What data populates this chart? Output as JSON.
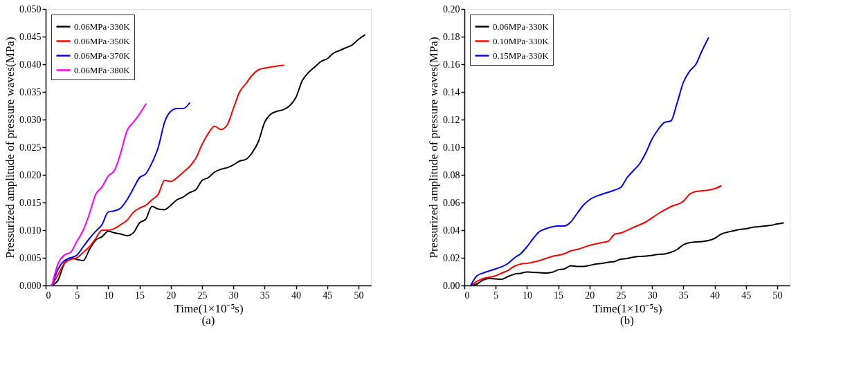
{
  "chart_data": [
    {
      "type": "line",
      "xlabel": "Time(1×10⁻⁵s)",
      "ylabel": "Pressurized amplitude of pressure waves(MPa)",
      "annotations": [
        "(a)"
      ],
      "xlim": [
        0,
        52
      ],
      "ylim": [
        0,
        0.05
      ],
      "xticks": [
        0,
        5,
        10,
        15,
        20,
        25,
        30,
        35,
        40,
        45,
        50
      ],
      "yticks": [
        {
          "value": 0,
          "label": "0.000"
        },
        {
          "value": 0.005,
          "label": "0.005"
        },
        {
          "value": 0.01,
          "label": "0.010"
        },
        {
          "value": 0.015,
          "label": "0.015"
        },
        {
          "value": 0.02,
          "label": "0.020"
        },
        {
          "value": 0.025,
          "label": "0.025"
        },
        {
          "value": 0.03,
          "label": "0.030"
        },
        {
          "value": 0.035,
          "label": "0.035"
        },
        {
          "value": 0.04,
          "label": "0.040"
        },
        {
          "value": 0.045,
          "label": "0.045"
        },
        {
          "value": 0.05,
          "label": "0.050"
        }
      ],
      "grid": false,
      "legend": "top left",
      "line_style": "solid",
      "marker": "none",
      "series": [
        {
          "name": "0.06MPa·330K",
          "color": "#000000",
          "x": [
            1,
            2,
            3,
            4,
            5,
            6,
            7,
            8,
            9,
            10,
            11,
            12,
            13,
            14,
            15,
            16,
            17,
            18,
            19,
            20,
            21,
            22,
            23,
            24,
            25,
            26,
            27,
            28,
            29,
            30,
            31,
            32,
            33,
            34,
            35,
            36,
            37,
            38,
            39,
            40,
            41,
            42,
            43,
            44,
            45,
            46,
            47,
            48,
            49,
            50,
            51
          ],
          "values": [
            0,
            0.001,
            0.004,
            0.005,
            0.0047,
            0.0045,
            0.0065,
            0.0082,
            0.0088,
            0.0098,
            0.0095,
            0.0093,
            0.009,
            0.0095,
            0.0113,
            0.012,
            0.0143,
            0.0138,
            0.0137,
            0.0145,
            0.0155,
            0.016,
            0.0168,
            0.0173,
            0.019,
            0.0195,
            0.0205,
            0.021,
            0.0213,
            0.0218,
            0.0225,
            0.0228,
            0.024,
            0.026,
            0.0295,
            0.031,
            0.0315,
            0.0318,
            0.0325,
            0.034,
            0.037,
            0.0385,
            0.0395,
            0.0405,
            0.041,
            0.042,
            0.0425,
            0.043,
            0.0435,
            0.0445,
            0.0453
          ]
        },
        {
          "name": "0.06MPa·350K",
          "color": "#ff0000",
          "x": [
            1,
            2,
            3,
            4,
            5,
            6,
            7,
            8,
            9,
            10,
            11,
            12,
            13,
            14,
            15,
            16,
            17,
            18,
            19,
            20,
            21,
            22,
            23,
            24,
            25,
            26,
            27,
            28,
            29,
            30,
            31,
            32,
            33,
            34,
            35,
            36,
            37,
            38
          ],
          "values": [
            0,
            0.002,
            0.004,
            0.0047,
            0.005,
            0.006,
            0.007,
            0.0085,
            0.01,
            0.01,
            0.0103,
            0.011,
            0.0118,
            0.0132,
            0.014,
            0.0145,
            0.0155,
            0.0165,
            0.019,
            0.0188,
            0.0195,
            0.0205,
            0.0215,
            0.023,
            0.0255,
            0.0275,
            0.0288,
            0.0282,
            0.029,
            0.032,
            0.035,
            0.0365,
            0.038,
            0.039,
            0.0393,
            0.0395,
            0.0397,
            0.0398
          ]
        },
        {
          "name": "0.06MPa·370K",
          "color": "#0000ff",
          "x": [
            1,
            2,
            3,
            4,
            5,
            6,
            7,
            8,
            9,
            10,
            11,
            12,
            13,
            14,
            15,
            16,
            17,
            18,
            19,
            20,
            21,
            22,
            23
          ],
          "values": [
            0,
            0.003,
            0.0045,
            0.005,
            0.0055,
            0.007,
            0.0085,
            0.0098,
            0.011,
            0.0133,
            0.0135,
            0.014,
            0.0155,
            0.0175,
            0.0195,
            0.0202,
            0.0222,
            0.025,
            0.0295,
            0.0315,
            0.032,
            0.032,
            0.033
          ]
        },
        {
          "name": "0.06MPa·380K",
          "color": "#ff00ff",
          "x": [
            1,
            2,
            3,
            4,
            5,
            6,
            7,
            8,
            9,
            10,
            11,
            12,
            13,
            14,
            15,
            16
          ],
          "values": [
            0,
            0.004,
            0.0055,
            0.006,
            0.008,
            0.01,
            0.013,
            0.0165,
            0.0178,
            0.0198,
            0.0208,
            0.024,
            0.028,
            0.0295,
            0.031,
            0.0328
          ]
        }
      ]
    },
    {
      "type": "line",
      "xlabel": "Time(1×10⁻⁵s)",
      "ylabel": "Pressurized amplitude of pressure waves(MPa)",
      "annotations": [
        "(b)"
      ],
      "xlim": [
        0,
        52
      ],
      "ylim": [
        0,
        0.2
      ],
      "xticks": [
        0,
        5,
        10,
        15,
        20,
        25,
        30,
        35,
        40,
        45,
        50
      ],
      "yticks": [
        {
          "value": 0,
          "label": "0.00"
        },
        {
          "value": 0.02,
          "label": "0.02"
        },
        {
          "value": 0.04,
          "label": "0.04"
        },
        {
          "value": 0.06,
          "label": "0.06"
        },
        {
          "value": 0.08,
          "label": "0.08"
        },
        {
          "value": 0.1,
          "label": "0.10"
        },
        {
          "value": 0.12,
          "label": "0.12"
        },
        {
          "value": 0.14,
          "label": "0.14"
        },
        {
          "value": 0.16,
          "label": "0.16"
        },
        {
          "value": 0.18,
          "label": "0.18"
        },
        {
          "value": 0.2,
          "label": "0.20"
        }
      ],
      "grid": false,
      "legend": "top left",
      "line_style": "solid",
      "marker": "none",
      "series": [
        {
          "name": "0.06MPa·330K",
          "color": "#000000",
          "x": [
            1,
            2,
            3,
            4,
            5,
            6,
            7,
            8,
            9,
            10,
            11,
            12,
            13,
            14,
            15,
            16,
            17,
            18,
            19,
            20,
            21,
            22,
            23,
            24,
            25,
            26,
            27,
            28,
            29,
            30,
            31,
            32,
            33,
            34,
            35,
            36,
            37,
            38,
            39,
            40,
            41,
            42,
            43,
            44,
            45,
            46,
            47,
            48,
            49,
            50,
            51
          ],
          "values": [
            0,
            0.001,
            0.004,
            0.005,
            0.0047,
            0.0045,
            0.0065,
            0.0082,
            0.0088,
            0.0098,
            0.0095,
            0.0093,
            0.009,
            0.0095,
            0.0113,
            0.012,
            0.0143,
            0.0138,
            0.0137,
            0.0145,
            0.0155,
            0.016,
            0.0168,
            0.0173,
            0.019,
            0.0195,
            0.0205,
            0.021,
            0.0213,
            0.0218,
            0.0225,
            0.0228,
            0.024,
            0.026,
            0.0295,
            0.031,
            0.0315,
            0.0318,
            0.0325,
            0.034,
            0.037,
            0.0385,
            0.0395,
            0.0405,
            0.041,
            0.042,
            0.0425,
            0.043,
            0.0435,
            0.0445,
            0.0453
          ]
        },
        {
          "name": "0.10MPa·330K",
          "color": "#ff0000",
          "x": [
            1,
            2,
            3,
            5,
            6,
            7,
            8,
            9,
            10,
            12,
            14,
            16,
            17,
            18,
            20,
            22,
            23,
            24,
            25,
            27,
            29,
            31,
            33,
            35,
            36,
            37,
            39,
            40,
            41
          ],
          "values": [
            0,
            0.003,
            0.005,
            0.007,
            0.009,
            0.011,
            0.014,
            0.0155,
            0.016,
            0.018,
            0.021,
            0.023,
            0.025,
            0.026,
            0.029,
            0.031,
            0.032,
            0.037,
            0.038,
            0.042,
            0.046,
            0.052,
            0.057,
            0.061,
            0.066,
            0.068,
            0.069,
            0.07,
            0.072
          ]
        },
        {
          "name": "0.15MPa·330K",
          "color": "#0000ff",
          "x": [
            1,
            2,
            3,
            5,
            7,
            8,
            9,
            10,
            11,
            12,
            13,
            15,
            16,
            17,
            18,
            19,
            20,
            22,
            24,
            25,
            26,
            27,
            28,
            29,
            30,
            31,
            32,
            33,
            34,
            35,
            36,
            37,
            38,
            39
          ],
          "values": [
            0,
            0.007,
            0.009,
            0.012,
            0.016,
            0.02,
            0.023,
            0.028,
            0.034,
            0.039,
            0.041,
            0.043,
            0.043,
            0.046,
            0.052,
            0.058,
            0.062,
            0.066,
            0.069,
            0.071,
            0.078,
            0.083,
            0.088,
            0.096,
            0.106,
            0.113,
            0.118,
            0.119,
            0.132,
            0.147,
            0.155,
            0.16,
            0.17,
            0.179
          ]
        }
      ]
    }
  ]
}
